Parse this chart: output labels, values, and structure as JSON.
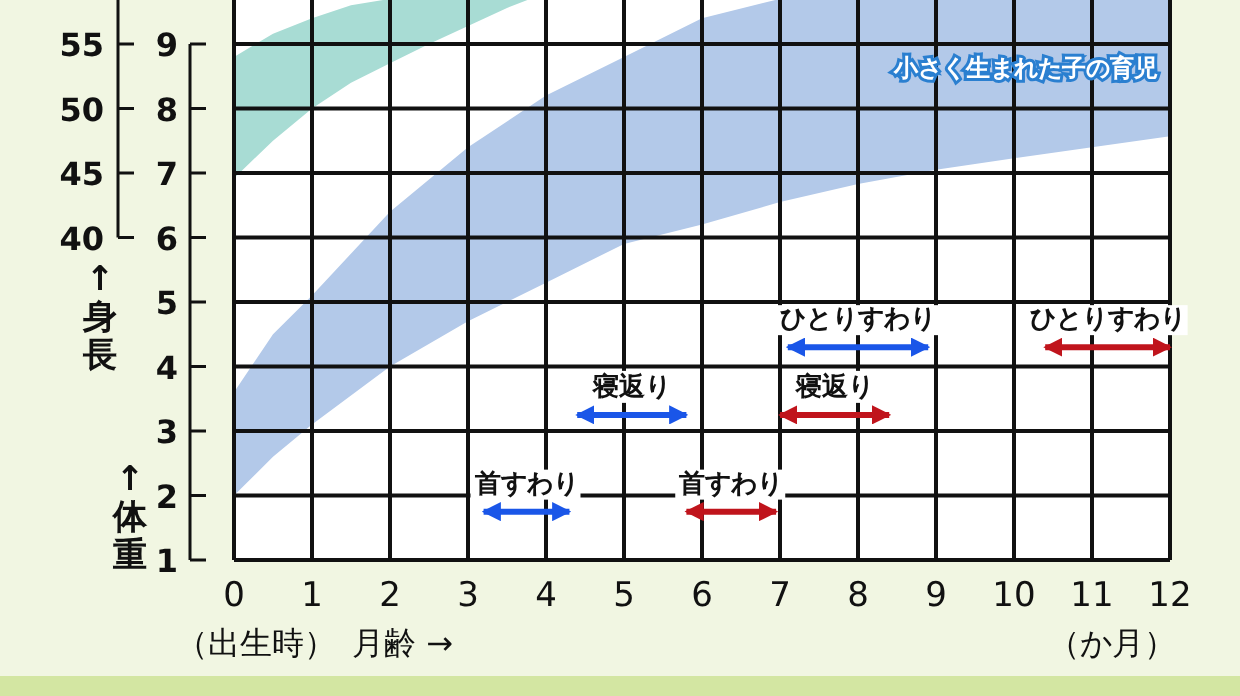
{
  "chart_data": {
    "type": "area",
    "title": "小さく生まれた子の育児",
    "xlabel": "月齢 →",
    "ylabel": "↑体重",
    "y2label": "↑身長",
    "annotations": [
      "（出生時）",
      "（か月）"
    ],
    "xlim": [
      0,
      12
    ],
    "xticks": [
      0,
      1,
      2,
      3,
      4,
      5,
      6,
      7,
      8,
      9,
      10,
      11,
      12
    ],
    "ylim": [
      1,
      9.7
    ],
    "yticks": [
      1,
      2,
      3,
      4,
      5,
      6,
      7,
      8,
      9
    ],
    "y2lim": [
      15,
      58.5
    ],
    "y2ticks": [
      40,
      45,
      50,
      55
    ],
    "grid": true,
    "line_style": "solid",
    "series": [
      {
        "axis": "y2",
        "color": "#a8dcd4",
        "x": [
          0,
          0.5,
          1,
          1.5,
          2,
          2.5,
          3,
          3.5,
          3.8
        ],
        "lower": [
          44.6,
          47.5,
          50,
          52,
          53.5,
          55,
          56.4,
          57.8,
          58.5
        ],
        "upper": [
          54,
          55.8,
          57,
          58,
          58.5,
          58.5,
          58.5,
          58.5,
          58.5
        ],
        "values": [
          null,
          null,
          null,
          null,
          null,
          null,
          null,
          null,
          null
        ]
      },
      {
        "color": "#b3c9e9",
        "x": [
          0,
          0.5,
          1,
          2,
          3,
          4,
          5,
          6,
          7,
          8,
          9,
          10,
          11,
          12
        ],
        "lower": [
          2.0,
          2.6,
          3.1,
          4.0,
          4.7,
          5.3,
          5.9,
          6.2,
          6.55,
          6.83,
          7.05,
          7.23,
          7.4,
          7.57
        ],
        "upper": [
          3.6,
          4.5,
          5.1,
          6.4,
          7.4,
          8.2,
          8.8,
          9.4,
          9.7,
          9.7,
          9.7,
          9.7,
          9.7,
          9.7
        ],
        "values": [
          null,
          null,
          null,
          null,
          null,
          null,
          null,
          null,
          null,
          null,
          null,
          null,
          null,
          null
        ]
      },
      {
        "type": "line",
        "name": "首すわり",
        "color": "#1a56e8",
        "x": [
          3.2,
          4.3
        ],
        "values": [
          1.75,
          1.75
        ]
      },
      {
        "type": "line",
        "name": "寝返り",
        "color": "#1a56e8",
        "x": [
          4.4,
          5.8
        ],
        "values": [
          3.25,
          3.25
        ]
      },
      {
        "type": "line",
        "name": "ひとりすわり",
        "color": "#1a56e8",
        "x": [
          7.1,
          8.9
        ],
        "values": [
          4.3,
          4.3
        ]
      },
      {
        "type": "line",
        "name": "首すわり",
        "color": "#c0141c",
        "x": [
          5.8,
          6.95
        ],
        "values": [
          1.75,
          1.75
        ]
      },
      {
        "type": "line",
        "name": "寝返り",
        "color": "#c0141c",
        "x": [
          7.0,
          8.4
        ],
        "values": [
          3.25,
          3.25
        ]
      },
      {
        "type": "line",
        "name": "ひとりすわり",
        "color": "#c0141c",
        "x": [
          10.4,
          12
        ],
        "values": [
          4.3,
          4.3
        ]
      }
    ]
  }
}
